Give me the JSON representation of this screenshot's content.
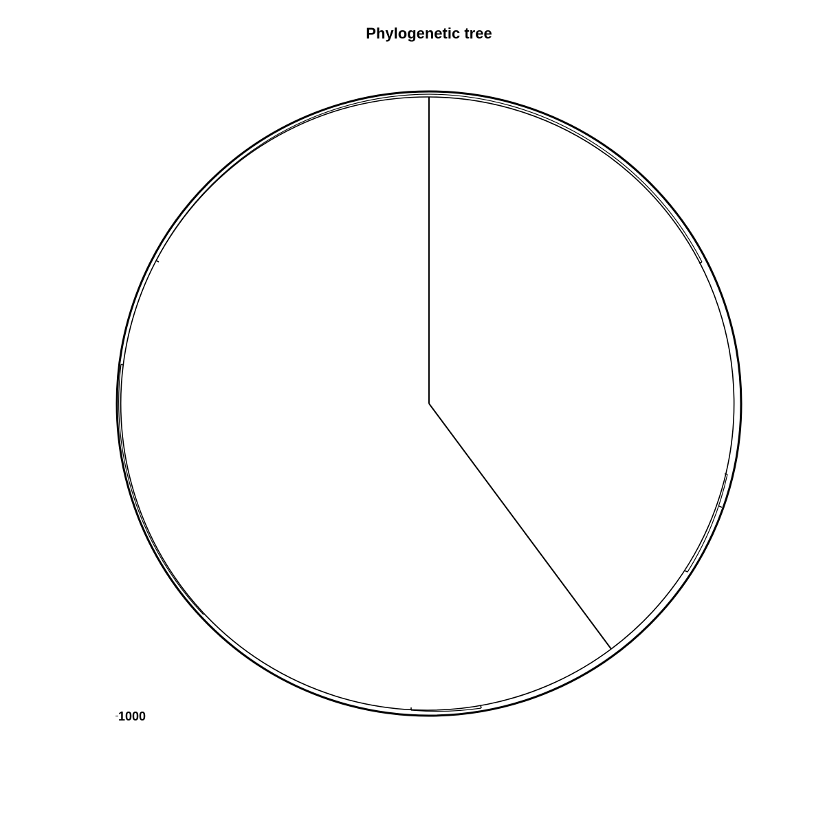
{
  "title": "Phylogenetic tree",
  "scale_bar": {
    "label": "1000"
  },
  "colors": {
    "line": "#000000",
    "background": "#ffffff"
  },
  "layout_type": "circular"
}
